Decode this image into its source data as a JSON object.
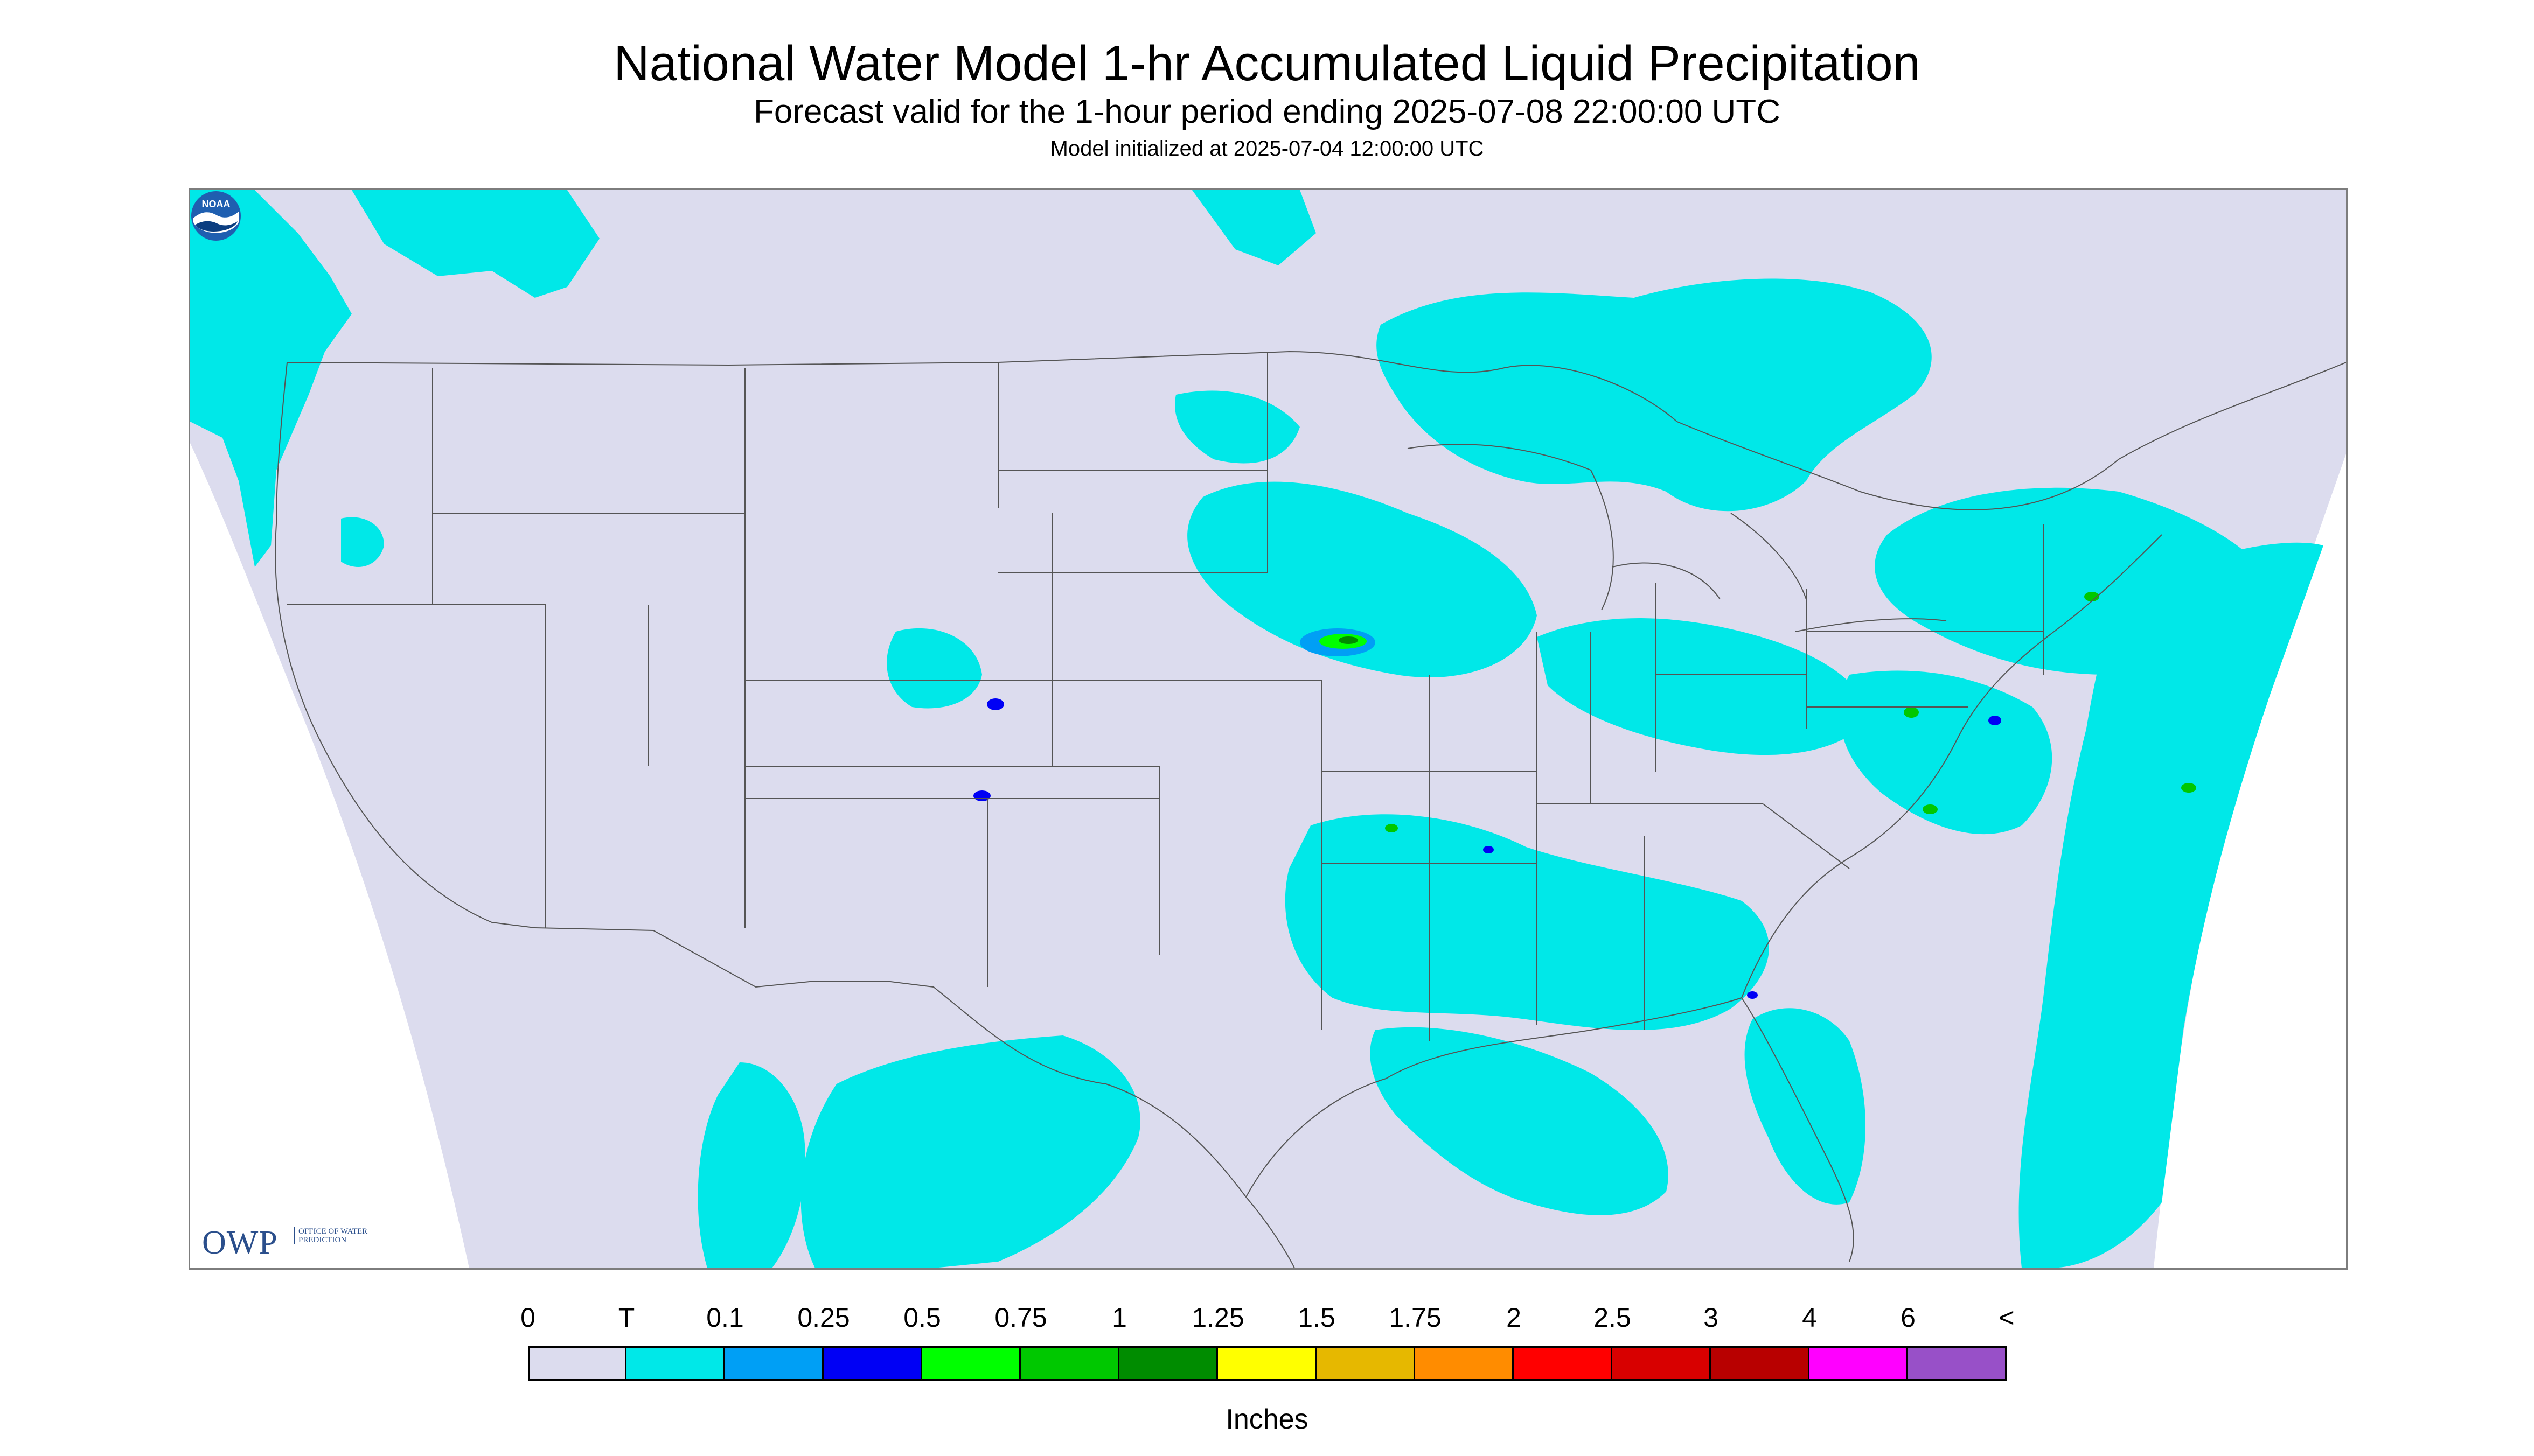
{
  "header": {
    "title": "National Water Model 1-hr Accumulated Liquid Precipitation",
    "subtitle": "Forecast valid for the 1-hour period ending 2025-07-08 22:00:00 UTC",
    "init": "Model initialized at 2025-07-04 12:00:00 UTC"
  },
  "logos": {
    "owp_mark": "OWP",
    "owp_text": "Office of Water Prediction",
    "noaa_text": "NOAA"
  },
  "map": {
    "projection": "Lambert conformal, contiguous United States",
    "background_color": "#dcdcee",
    "outside_domain_color": "#ffffff",
    "boundary_color": "#555555",
    "precip_areas": [
      {
        "region": "Pacific Northwest coast",
        "class": "T"
      },
      {
        "region": "Northern Minnesota / Lake Superior / Ontario",
        "class": "T"
      },
      {
        "region": "Upper Midwest (Iowa / Minnesota / Wisconsin)",
        "class": "T"
      },
      {
        "region": "Southeast Minnesota core",
        "class": "1"
      },
      {
        "region": "Ohio Valley / Mid-Atlantic",
        "class": "T"
      },
      {
        "region": "Northeast / New England",
        "class": "T"
      },
      {
        "region": "Western Atlantic offshore",
        "class": "T"
      },
      {
        "region": "Southeast / Gulf Coast",
        "class": "T"
      },
      {
        "region": "Northern Mexico / Texas",
        "class": "T"
      },
      {
        "region": "Colorado",
        "class": "0.25"
      }
    ]
  },
  "legend": {
    "labels": [
      "0",
      "T",
      "0.1",
      "0.25",
      "0.5",
      "0.75",
      "1",
      "1.25",
      "1.5",
      "1.75",
      "2",
      "2.5",
      "3",
      "4",
      "6",
      "<"
    ],
    "colors": [
      "#dcdcee",
      "#00e8e8",
      "#009ff5",
      "#0000f5",
      "#00ff00",
      "#00c800",
      "#008c00",
      "#ffff00",
      "#e6b800",
      "#ff8c00",
      "#ff0000",
      "#d80000",
      "#b80000",
      "#ff00ff",
      "#9850c8"
    ],
    "units": "Inches"
  }
}
